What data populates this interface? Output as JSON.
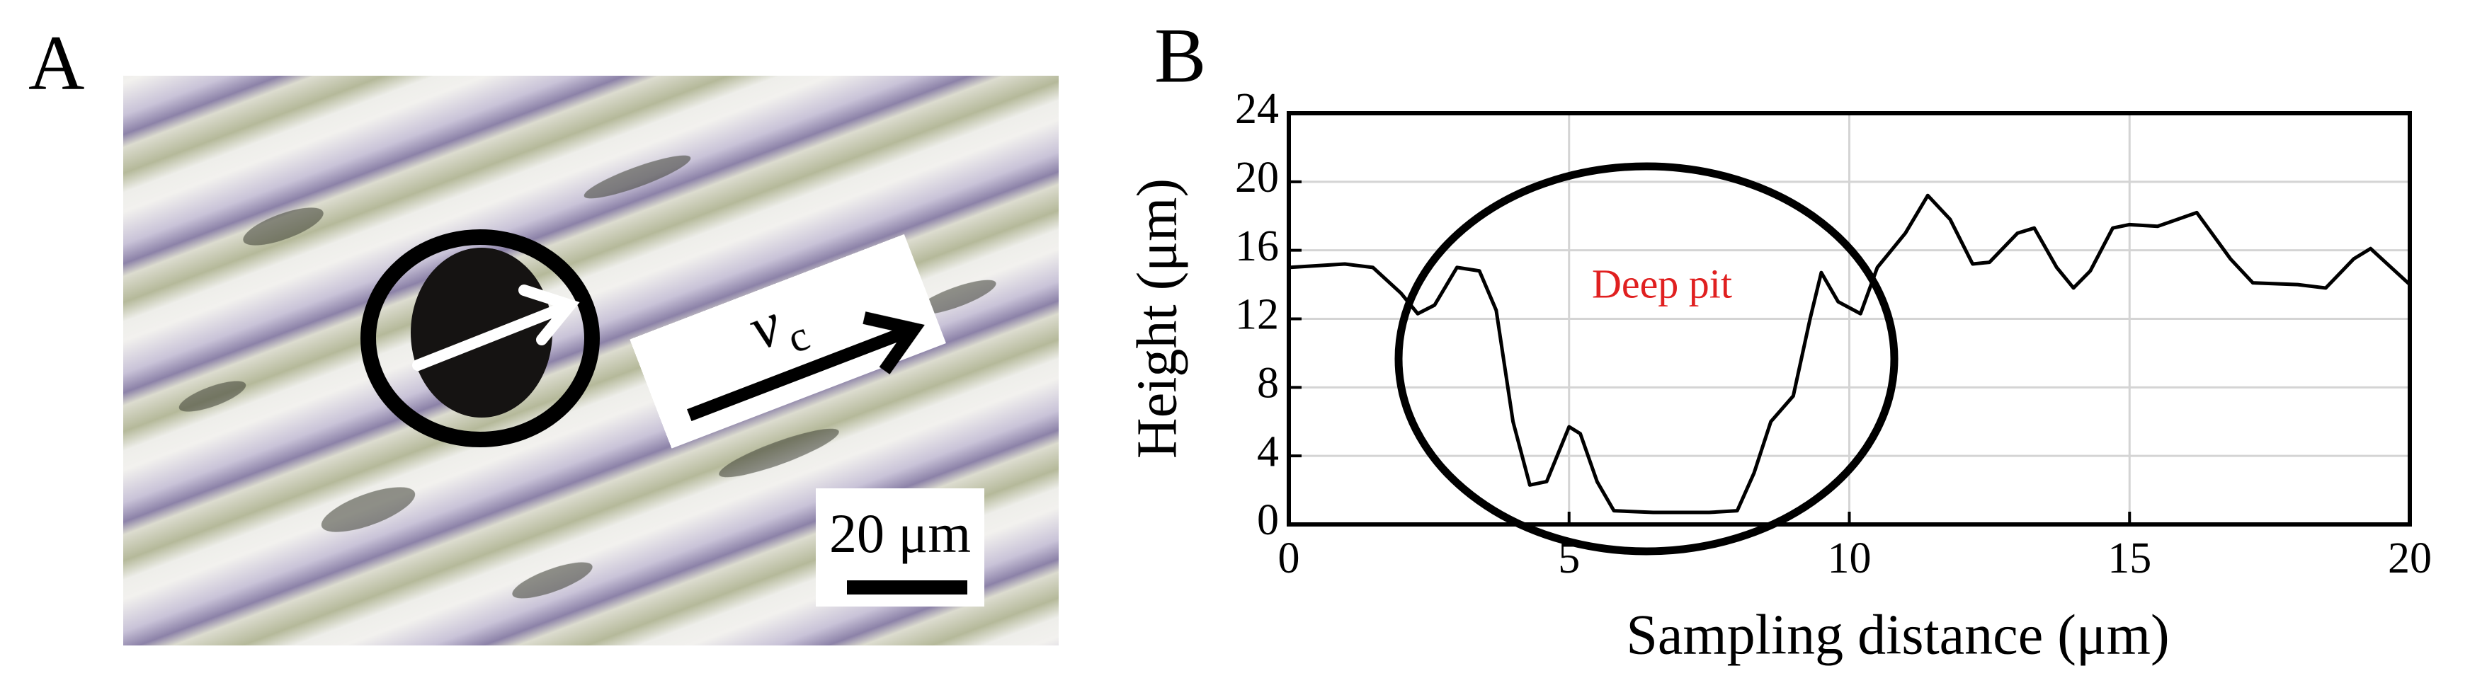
{
  "panel_a": {
    "label": "A",
    "velocity_label": "v",
    "velocity_subscript": "c",
    "scale_bar_label": "20 μm"
  },
  "chart_data": {
    "type": "line",
    "panel_label": "B",
    "annotation": "Deep pit",
    "x_label": "Sampling distance (μm)",
    "y_label": "Height (μm)",
    "x": [
      0,
      1,
      1.5,
      2,
      2.3,
      2.6,
      3,
      3.4,
      3.7,
      4.0,
      4.3,
      4.6,
      5.0,
      5.2,
      5.5,
      5.8,
      6.5,
      7.5,
      8.0,
      8.3,
      8.6,
      9.0,
      9.3,
      9.5,
      9.8,
      10.2,
      10.5,
      11,
      11.4,
      11.8,
      12.2,
      12.5,
      13,
      13.3,
      13.7,
      14,
      14.3,
      14.7,
      15,
      15.5,
      16.2,
      16.8,
      17.2,
      18,
      18.5,
      19,
      19.3,
      19.6,
      20
    ],
    "values": [
      15.0,
      15.2,
      15.0,
      13.5,
      12.3,
      12.8,
      15.0,
      14.8,
      12.5,
      6,
      2.3,
      2.5,
      5.7,
      5.3,
      2.5,
      0.8,
      0.7,
      0.7,
      0.8,
      3,
      6,
      7.5,
      12,
      14.7,
      13,
      12.3,
      15,
      17,
      19.2,
      17.8,
      15.2,
      15.3,
      17,
      17.3,
      15,
      13.8,
      14.8,
      17.3,
      17.5,
      17.4,
      18.2,
      15.5,
      14.1,
      14,
      13.8,
      15.5,
      16.1,
      15.2,
      14.0
    ],
    "color": "#000000",
    "xlim": [
      0,
      20
    ],
    "xticks": [
      0,
      5,
      10,
      15,
      20
    ],
    "ylim": [
      0,
      24
    ],
    "yticks": [
      0,
      4,
      8,
      12,
      16,
      20,
      24
    ],
    "grid": true
  }
}
